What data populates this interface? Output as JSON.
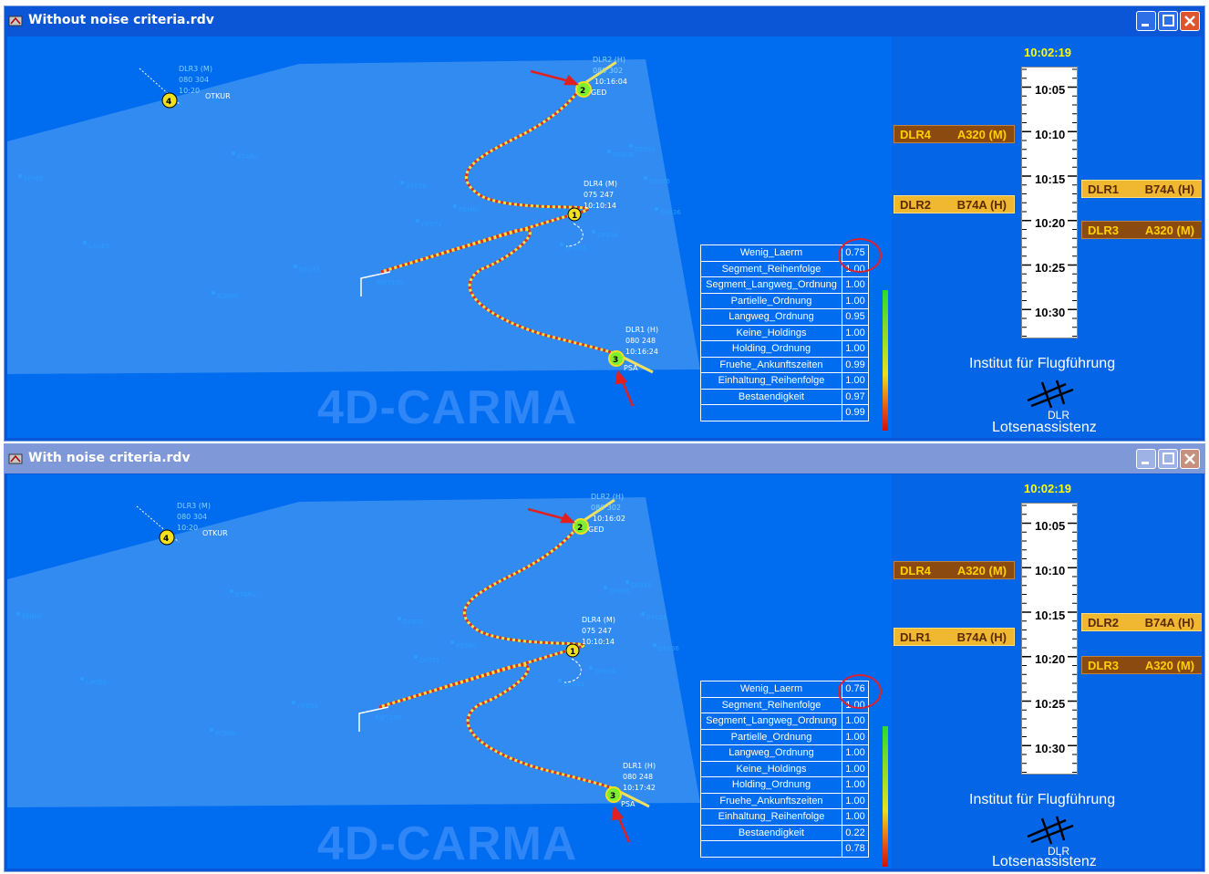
{
  "colors": {
    "title_active": "#0a56d6",
    "title_inactive": "#7f98d8",
    "map_bg": "#006cf0",
    "airspace": "#3a90f0",
    "trajectory_a": "#e03020",
    "trajectory_b": "#f0e040",
    "tag_brown": "#8a4a10",
    "tag_gold": "#f0b830"
  },
  "criteria_labels": [
    "Wenig_Laerm",
    "Segment_Reihenfolge",
    "Segment_Langweg_Ordnung",
    "Partielle_Ordnung",
    "Langweg_Ordnung",
    "Keine_Holdings",
    "Holding_Ordnung",
    "Fruehe_Ankunftszeiten",
    "Einhaltung_Reihenfolge",
    "Bestaendigkeit"
  ],
  "windows": [
    {
      "title": "Without noise criteria.rdv",
      "watermark": "4D-CARMA",
      "clock": "10:02:19",
      "timeline_labels": [
        "10:05",
        "10:10",
        "10:15",
        "10:20",
        "10:25",
        "10:30"
      ],
      "criteria_values": [
        "0.75",
        "1.00",
        "1.00",
        "1.00",
        "0.95",
        "1.00",
        "1.00",
        "0.99",
        "1.00",
        "0.97"
      ],
      "total": "0.99",
      "tags": [
        {
          "cs": "DLR4",
          "ac": "A320 (M)",
          "style": "brown",
          "side": "left",
          "pos": "10:10"
        },
        {
          "cs": "DLR2",
          "ac": "B74A (H)",
          "style": "gold",
          "side": "left",
          "pos": "10:18"
        },
        {
          "cs": "DLR1",
          "ac": "B74A (H)",
          "style": "gold",
          "side": "right",
          "pos": "10:16"
        },
        {
          "cs": "DLR3",
          "ac": "A320 (M)",
          "style": "brown",
          "side": "right",
          "pos": "10:21"
        }
      ],
      "aircraft": {
        "dlr3": {
          "id": "DLR3 (M)",
          "data": "080 304",
          "time": "10:20",
          "num": "4",
          "fix": "OTKUR"
        },
        "dlr2": {
          "id": "DLR2 (H)",
          "data": "080 302",
          "time": "10:16:04",
          "num": "2",
          "fix": "GED"
        },
        "dlr4": {
          "id": "DLR4 (M)",
          "data": "075 247",
          "time": "10:10:14",
          "num": "1"
        },
        "dlr1": {
          "id": "DLR1 (H)",
          "data": "080 248",
          "time": "10:16:24",
          "num": "3",
          "fix": "PSA"
        }
      },
      "institute": "Institut für Flugführung",
      "dlr": "DLR",
      "lotsen": "Lotsenassistenz"
    },
    {
      "title": "With noise criteria.rdv",
      "watermark": "4D-CARMA",
      "clock": "10:02:19",
      "timeline_labels": [
        "10:05",
        "10:10",
        "10:15",
        "10:20",
        "10:25",
        "10:30"
      ],
      "criteria_values": [
        "0.76",
        "1.00",
        "1.00",
        "1.00",
        "1.00",
        "1.00",
        "1.00",
        "1.00",
        "1.00",
        "0.22"
      ],
      "total": "0.78",
      "tags": [
        {
          "cs": "DLR4",
          "ac": "A320 (M)",
          "style": "brown",
          "side": "left",
          "pos": "10:10"
        },
        {
          "cs": "DLR1",
          "ac": "B74A (H)",
          "style": "gold",
          "side": "left",
          "pos": "10:17"
        },
        {
          "cs": "DLR2",
          "ac": "B74A (H)",
          "style": "gold",
          "side": "right",
          "pos": "10:16"
        },
        {
          "cs": "DLR3",
          "ac": "A320 (M)",
          "style": "brown",
          "side": "right",
          "pos": "10:21"
        }
      ],
      "aircraft": {
        "dlr3": {
          "id": "DLR3 (M)",
          "data": "080 304",
          "time": "10:20",
          "num": "4",
          "fix": "OTKUR"
        },
        "dlr2": {
          "id": "DLR2 (H)",
          "data": "080 302",
          "time": "10:16:02",
          "num": "2",
          "fix": "GED"
        },
        "dlr4": {
          "id": "DLR4 (M)",
          "data": "075 247",
          "time": "10:10:14",
          "num": "1"
        },
        "dlr1": {
          "id": "DLR1 (H)",
          "data": "080 248",
          "time": "10:17:42",
          "num": "3",
          "fix": "PSA"
        }
      },
      "institute": "Institut für Flugführung",
      "dlr": "DLR",
      "lotsen": "Lotsenassistenz"
    }
  ],
  "waypoints": [
    "ETARU",
    "EFINO",
    "LAGES",
    "DF035",
    "ROKIM",
    "DF070",
    "DF071",
    "REMBI",
    "DF001",
    "DF002",
    "DF003",
    "DF004",
    "DF005",
    "DF006",
    "DF016",
    "DF026",
    "DF036",
    "DF034",
    "DF033",
    "DF032",
    "DF031",
    "DF025",
    "DF024",
    "DF023",
    "DF022",
    "DF021",
    "DF020",
    "DF019",
    "DF018",
    "DF017",
    "DF015",
    "DF014",
    "DF013",
    "DF012",
    "DF011",
    "DF010",
    "DF009",
    "DF008",
    "DF007",
    "WT25R",
    "RWY25R",
    "MAT25R"
  ]
}
